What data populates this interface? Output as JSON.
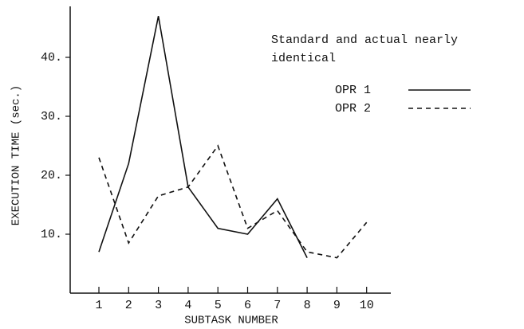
{
  "chart_data": {
    "type": "line",
    "annotation": [
      "Standard and actual nearly",
      "identical"
    ],
    "x_label": "SUBTASK NUMBER",
    "y_label": "EXECUTION TIME (sec.)",
    "x": [
      1,
      2,
      3,
      4,
      5,
      6,
      7,
      8,
      9,
      10
    ],
    "series": [
      {
        "name": "OPR 1",
        "color": "#111111",
        "dash": "none",
        "values": [
          7,
          22,
          47,
          18,
          11,
          10,
          16,
          6,
          null,
          null
        ]
      },
      {
        "name": "OPR 2",
        "color": "#111111",
        "dash": "6 5",
        "values": [
          23,
          8.5,
          16.5,
          18,
          25,
          11,
          14,
          7,
          6,
          12
        ]
      }
    ],
    "xlim": [
      0,
      11
    ],
    "xticks": [
      1,
      2,
      3,
      4,
      5,
      6,
      7,
      8,
      9,
      10
    ],
    "ylim": [
      0,
      48
    ],
    "yticks": [
      {
        "value": 10,
        "label": "10."
      },
      {
        "value": 20,
        "label": "20."
      },
      {
        "value": 30,
        "label": "30."
      },
      {
        "value": 40,
        "label": "40."
      }
    ],
    "legend": "upper right"
  }
}
